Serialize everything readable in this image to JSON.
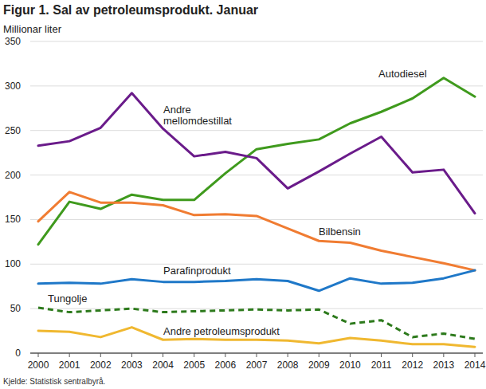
{
  "chart_data": {
    "type": "line",
    "title": "Figur 1. Sal av petroleumsprodukt. Januar",
    "y_label": "Millionar liter",
    "source": "Kjelde: Statistisk sentralbyrå.",
    "categories": [
      "2000",
      "2001",
      "2002",
      "2003",
      "2004",
      "2005",
      "2006",
      "2007",
      "2008",
      "2009",
      "2010",
      "2011",
      "2012",
      "2013",
      "2014"
    ],
    "ylim": [
      0,
      350
    ],
    "yticks": [
      0,
      50,
      100,
      150,
      200,
      250,
      300,
      350
    ],
    "grid": true,
    "series": [
      {
        "name": "Autodiesel",
        "color": "#3f9a1d",
        "line_style": "solid",
        "values": [
          122,
          170,
          162,
          178,
          172,
          172,
          202,
          229,
          235,
          240,
          258,
          271,
          286,
          309,
          288
        ]
      },
      {
        "name": "Andre mellomdestillat",
        "color": "#6a1b8a",
        "line_style": "solid",
        "values": [
          233,
          238,
          253,
          292,
          252,
          221,
          226,
          219,
          185,
          204,
          224,
          243,
          203,
          206,
          157
        ]
      },
      {
        "name": "Bilbensin",
        "color": "#f07c32",
        "line_style": "solid",
        "values": [
          148,
          181,
          169,
          169,
          166,
          155,
          156,
          154,
          140,
          126,
          124,
          115,
          108,
          101,
          93
        ]
      },
      {
        "name": "Parafinprodukt",
        "color": "#1f78c8",
        "line_style": "solid",
        "values": [
          78,
          79,
          78,
          83,
          80,
          80,
          81,
          83,
          81,
          70,
          84,
          78,
          79,
          84,
          93
        ]
      },
      {
        "name": "Tungolje",
        "color": "#2d7a1c",
        "line_style": "dashed",
        "values": [
          51,
          46,
          48,
          50,
          46,
          47,
          48,
          49,
          48,
          49,
          33,
          37,
          18,
          22,
          16
        ]
      },
      {
        "name": "Andre petroleumsprodukt",
        "color": "#f0b830",
        "line_style": "solid",
        "values": [
          25,
          24,
          18,
          29,
          15,
          16,
          15,
          15,
          14,
          11,
          17,
          14,
          10,
          10,
          7
        ]
      }
    ]
  }
}
